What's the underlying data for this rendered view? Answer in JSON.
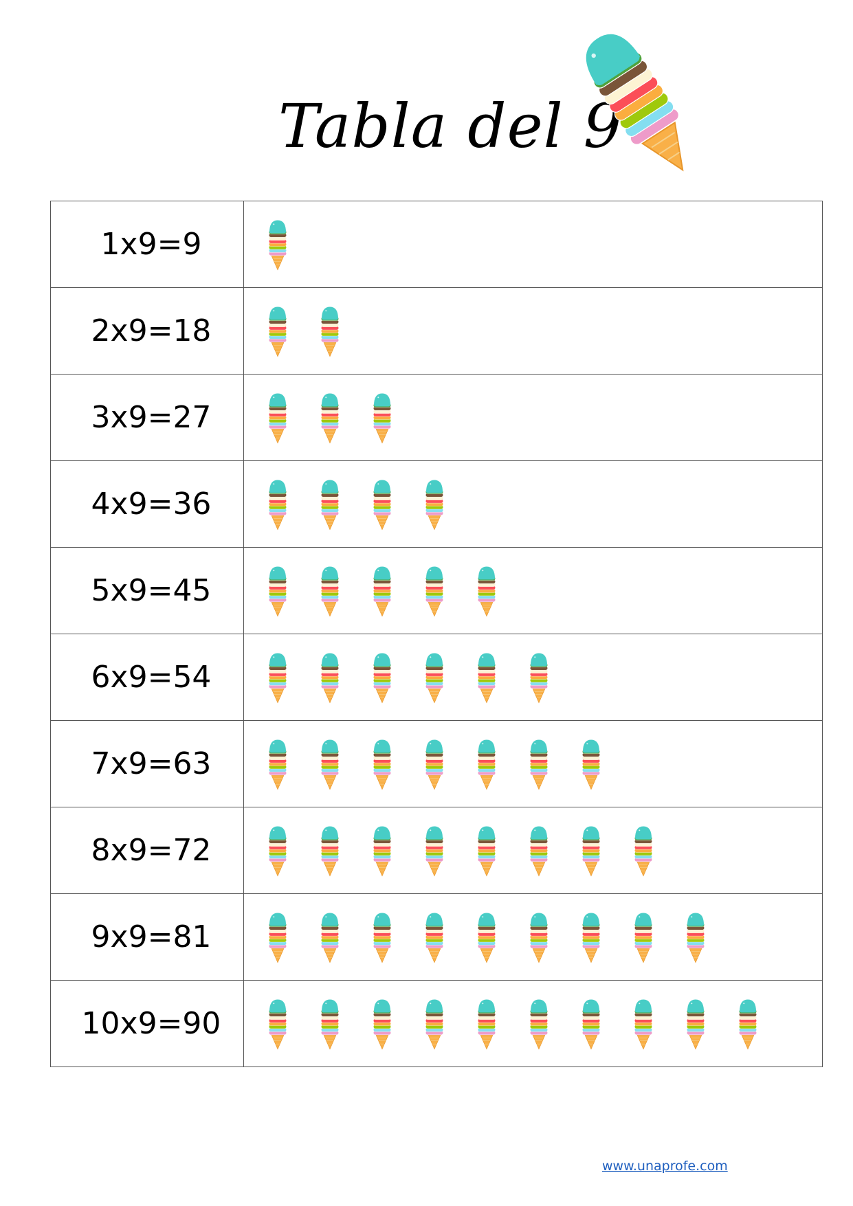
{
  "header": {
    "title": "Tabla del 9",
    "decoration_icon": "ice-cream-cone-icon"
  },
  "scoop_colors": [
    "#48cdc6",
    "#4fa33d",
    "#7a5538",
    "#fdf3d3",
    "#fb4e58",
    "#fbad3f",
    "#9fc90c",
    "#84def0",
    "#ee9bc9"
  ],
  "cone_color": "#f9b048",
  "table": {
    "rows": [
      {
        "equation": "1x9=9",
        "icon_count": 1
      },
      {
        "equation": "2x9=18",
        "icon_count": 2
      },
      {
        "equation": "3x9=27",
        "icon_count": 3
      },
      {
        "equation": "4x9=36",
        "icon_count": 4
      },
      {
        "equation": "5x9=45",
        "icon_count": 5
      },
      {
        "equation": "6x9=54",
        "icon_count": 6
      },
      {
        "equation": "7x9=63",
        "icon_count": 7
      },
      {
        "equation": "8x9=72",
        "icon_count": 8
      },
      {
        "equation": "9x9=81",
        "icon_count": 9
      },
      {
        "equation": "10x9=90",
        "icon_count": 10
      }
    ]
  },
  "footer": {
    "link_text": "www.unaprofe.com"
  }
}
